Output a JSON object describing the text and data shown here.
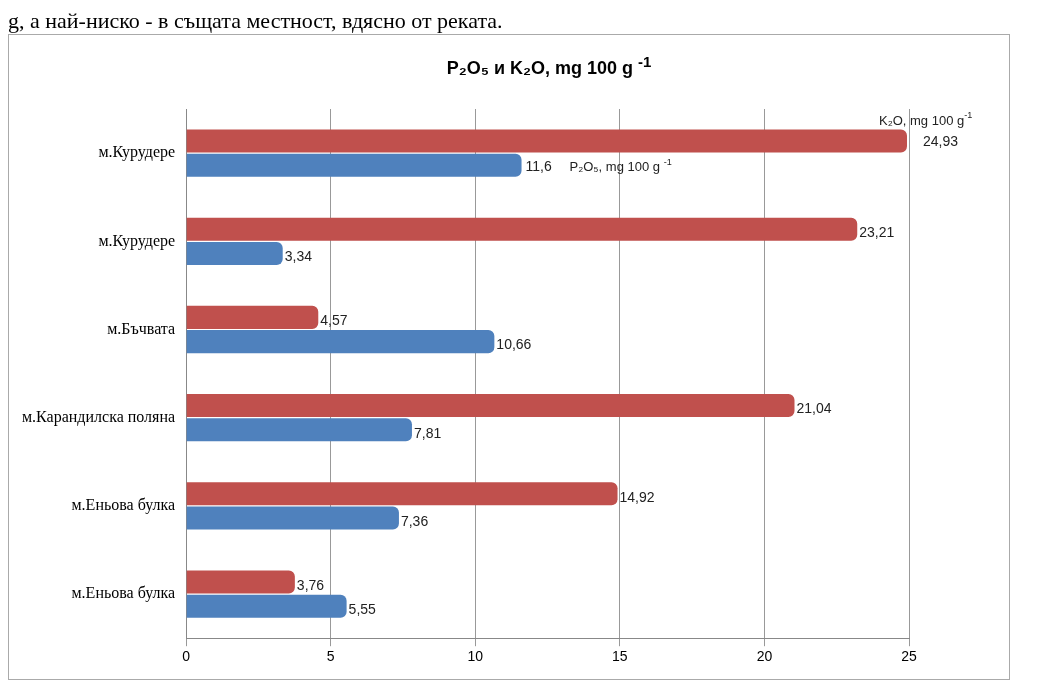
{
  "chart_data": {
    "type": "bar",
    "orientation": "horizontal",
    "title": "P₂O₅ и K₂O, mg 100 g $^{-1}$",
    "annotations": [
      "g, а най-ниско - в същата местност, вдясно от реката."
    ],
    "categories": [
      "м.Курудере",
      "м.Курудере",
      "м.Бъчвата",
      "м.Карандилска поляна",
      "м.Еньова булка",
      "м.Еньова булка"
    ],
    "series": [
      {
        "name": "K₂O, mg 100 g$^{-1}$",
        "color": "#c0504d",
        "values": [
          24.93,
          23.21,
          4.57,
          21.04,
          14.92,
          3.76
        ],
        "value_labels": [
          "24,93",
          "23,21",
          "4,57",
          "21,04",
          "14,92",
          "3,76"
        ]
      },
      {
        "name": "P₂O₅, mg 100 g $^{-1}$",
        "color": "#4f81bd",
        "values": [
          11.6,
          3.34,
          10.66,
          7.81,
          7.36,
          5.55
        ],
        "value_labels": [
          "11,6",
          "3,34",
          "10,66",
          "7,81",
          "7,36",
          "5,55"
        ]
      }
    ],
    "xlim": [
      0,
      25
    ],
    "xticks": [
      0,
      5,
      10,
      15,
      20,
      25
    ],
    "grid": "x",
    "legend": false
  }
}
